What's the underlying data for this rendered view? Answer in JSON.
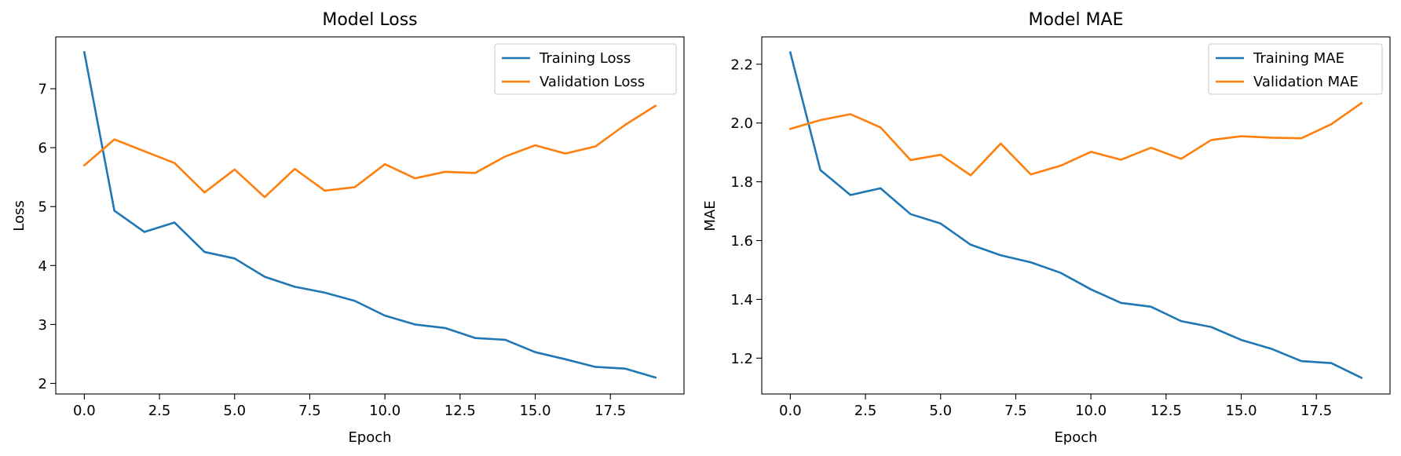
{
  "chart_data": [
    {
      "type": "line",
      "title": "Model Loss",
      "xlabel": "Epoch",
      "ylabel": "Loss",
      "x": [
        0,
        1,
        2,
        3,
        4,
        5,
        6,
        7,
        8,
        9,
        10,
        11,
        12,
        13,
        14,
        15,
        16,
        17,
        18,
        19
      ],
      "xlim": [
        -0.95,
        19.95
      ],
      "ylim": [
        1.82,
        7.88
      ],
      "xticks": [
        0.0,
        2.5,
        5.0,
        7.5,
        10.0,
        12.5,
        15.0,
        17.5
      ],
      "xtick_labels": [
        "0.0",
        "2.5",
        "5.0",
        "7.5",
        "10.0",
        "12.5",
        "15.0",
        "17.5"
      ],
      "yticks": [
        2,
        3,
        4,
        5,
        6,
        7
      ],
      "ytick_labels": [
        "2",
        "3",
        "4",
        "5",
        "6",
        "7"
      ],
      "grid": false,
      "legend_position": "top-right",
      "series": [
        {
          "name": "Training Loss",
          "color": "#1f77b4",
          "values": [
            7.62,
            4.93,
            4.57,
            4.73,
            4.23,
            4.12,
            3.81,
            3.64,
            3.54,
            3.4,
            3.15,
            3.0,
            2.94,
            2.77,
            2.74,
            2.53,
            2.41,
            2.28,
            2.25,
            2.1
          ]
        },
        {
          "name": "Validation Loss",
          "color": "#ff7f0e",
          "values": [
            5.7,
            6.14,
            5.94,
            5.74,
            5.24,
            5.63,
            5.16,
            5.64,
            5.27,
            5.33,
            5.72,
            5.48,
            5.59,
            5.57,
            5.85,
            6.04,
            5.9,
            6.02,
            6.39,
            6.71
          ]
        }
      ]
    },
    {
      "type": "line",
      "title": "Model MAE",
      "xlabel": "Epoch",
      "ylabel": "MAE",
      "x": [
        0,
        1,
        2,
        3,
        4,
        5,
        6,
        7,
        8,
        9,
        10,
        11,
        12,
        13,
        14,
        15,
        16,
        17,
        18,
        19
      ],
      "xlim": [
        -0.95,
        19.95
      ],
      "ylim": [
        1.078,
        2.293
      ],
      "xticks": [
        0.0,
        2.5,
        5.0,
        7.5,
        10.0,
        12.5,
        15.0,
        17.5
      ],
      "xtick_labels": [
        "0.0",
        "2.5",
        "5.0",
        "7.5",
        "10.0",
        "12.5",
        "15.0",
        "17.5"
      ],
      "yticks": [
        1.2,
        1.4,
        1.6,
        1.8,
        2.0,
        2.2
      ],
      "ytick_labels": [
        "1.2",
        "1.4",
        "1.6",
        "1.8",
        "2.0",
        "2.2"
      ],
      "grid": false,
      "legend_position": "top-right",
      "series": [
        {
          "name": "Training MAE",
          "color": "#1f77b4",
          "values": [
            2.24,
            1.84,
            1.755,
            1.778,
            1.69,
            1.658,
            1.586,
            1.55,
            1.526,
            1.49,
            1.434,
            1.388,
            1.375,
            1.326,
            1.306,
            1.262,
            1.232,
            1.19,
            1.183,
            1.133
          ]
        },
        {
          "name": "Validation MAE",
          "color": "#ff7f0e",
          "values": [
            1.98,
            2.01,
            2.03,
            1.985,
            1.874,
            1.892,
            1.822,
            1.93,
            1.825,
            1.855,
            1.902,
            1.875,
            1.916,
            1.878,
            1.942,
            1.955,
            1.95,
            1.948,
            1.996,
            2.068
          ]
        }
      ]
    }
  ]
}
